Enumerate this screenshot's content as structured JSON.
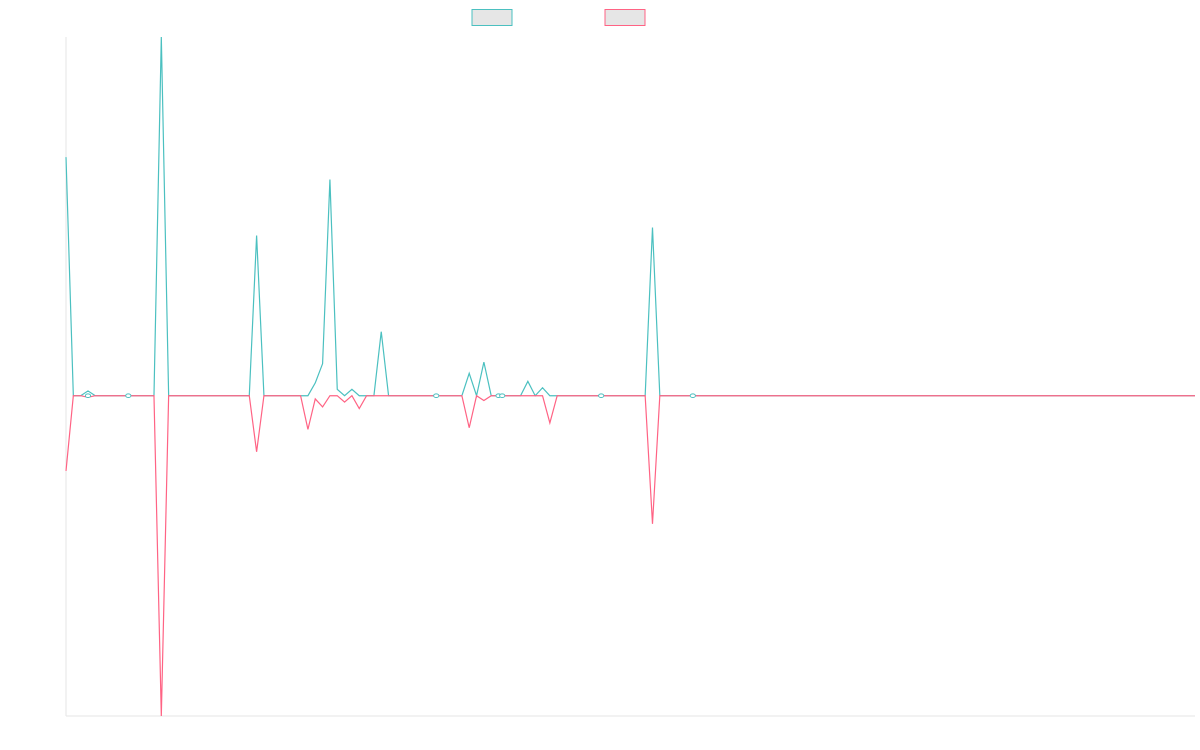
{
  "chart_data": {
    "type": "line",
    "title": "",
    "xlabel": "",
    "ylabel": "",
    "grid": false,
    "legend_position": "top-center",
    "x_count": 155,
    "ylim": [
      -1,
      1.12
    ],
    "colors": {
      "series_a": "#4bc0c0",
      "series_b": "#ff6384",
      "legend_fill": "#e6e6e6",
      "axis": "#e5e5e5"
    },
    "series": [
      {
        "name": "",
        "color": "#4bc0c0",
        "points": [
          [
            0,
            0.745
          ],
          [
            1,
            0.0
          ],
          [
            2,
            0.0
          ],
          [
            3,
            0.015
          ],
          [
            4,
            0.0
          ],
          [
            8,
            0.0
          ],
          [
            9,
            0.0
          ],
          [
            12,
            0.0
          ],
          [
            13,
            1.12
          ],
          [
            14,
            0.0
          ],
          [
            25,
            0.0
          ],
          [
            26,
            0.5
          ],
          [
            27,
            0.0
          ],
          [
            33,
            0.0
          ],
          [
            34,
            0.04
          ],
          [
            35,
            0.1
          ],
          [
            36,
            0.675
          ],
          [
            37,
            0.02
          ],
          [
            38,
            0.0
          ],
          [
            39,
            0.02
          ],
          [
            40,
            0.0
          ],
          [
            41,
            0.0
          ],
          [
            42,
            0.0
          ],
          [
            43,
            0.2
          ],
          [
            44,
            0.0
          ],
          [
            50,
            0.0
          ],
          [
            51,
            0.0
          ],
          [
            54,
            0.0
          ],
          [
            55,
            0.07
          ],
          [
            56,
            0.0
          ],
          [
            57,
            0.105
          ],
          [
            58,
            0.0
          ],
          [
            59,
            0.0
          ],
          [
            60,
            0.0
          ],
          [
            62,
            0.0
          ],
          [
            63,
            0.045
          ],
          [
            64,
            0.0
          ],
          [
            65,
            0.025
          ],
          [
            66,
            0.0
          ],
          [
            72,
            0.0
          ],
          [
            73,
            0.0
          ],
          [
            74,
            0.0
          ],
          [
            79,
            0.0
          ],
          [
            80,
            0.525
          ],
          [
            81,
            0.0
          ],
          [
            85,
            0.0
          ],
          [
            86,
            0.0
          ],
          [
            154,
            0.0
          ]
        ]
      },
      {
        "name": "",
        "color": "#ff6384",
        "points": [
          [
            0,
            -0.235
          ],
          [
            1,
            0.0
          ],
          [
            2,
            0.0
          ],
          [
            3,
            -0.005
          ],
          [
            4,
            0.0
          ],
          [
            8,
            0.0
          ],
          [
            9,
            0.0
          ],
          [
            12,
            0.0
          ],
          [
            13,
            -1.0
          ],
          [
            14,
            0.0
          ],
          [
            25,
            0.0
          ],
          [
            26,
            -0.175
          ],
          [
            27,
            0.0
          ],
          [
            32,
            0.0
          ],
          [
            33,
            -0.105
          ],
          [
            34,
            -0.01
          ],
          [
            35,
            -0.035
          ],
          [
            36,
            0.0
          ],
          [
            37,
            0.0
          ],
          [
            38,
            -0.02
          ],
          [
            39,
            0.0
          ],
          [
            40,
            -0.04
          ],
          [
            41,
            0.0
          ],
          [
            50,
            0.0
          ],
          [
            51,
            0.0
          ],
          [
            54,
            0.0
          ],
          [
            55,
            -0.1
          ],
          [
            56,
            0.0
          ],
          [
            57,
            -0.015
          ],
          [
            58,
            0.0
          ],
          [
            59,
            0.0
          ],
          [
            60,
            0.0
          ],
          [
            65,
            0.0
          ],
          [
            66,
            -0.085
          ],
          [
            67,
            0.0
          ],
          [
            72,
            0.0
          ],
          [
            73,
            0.0
          ],
          [
            74,
            0.0
          ],
          [
            79,
            0.0
          ],
          [
            80,
            -0.4
          ],
          [
            81,
            0.0
          ],
          [
            85,
            0.0
          ],
          [
            86,
            0.0
          ],
          [
            154,
            0.0
          ]
        ]
      }
    ],
    "markers": [
      {
        "series": 0,
        "x": 3,
        "y": 0.0
      },
      {
        "series": 0,
        "x": 8.5,
        "y": 0.0
      },
      {
        "series": 0,
        "x": 50.5,
        "y": 0.0
      },
      {
        "series": 0,
        "x": 59,
        "y": 0.0
      },
      {
        "series": 0,
        "x": 59.5,
        "y": 0.0
      },
      {
        "series": 0,
        "x": 73,
        "y": 0.0
      },
      {
        "series": 0,
        "x": 85.5,
        "y": 0.0
      }
    ]
  }
}
